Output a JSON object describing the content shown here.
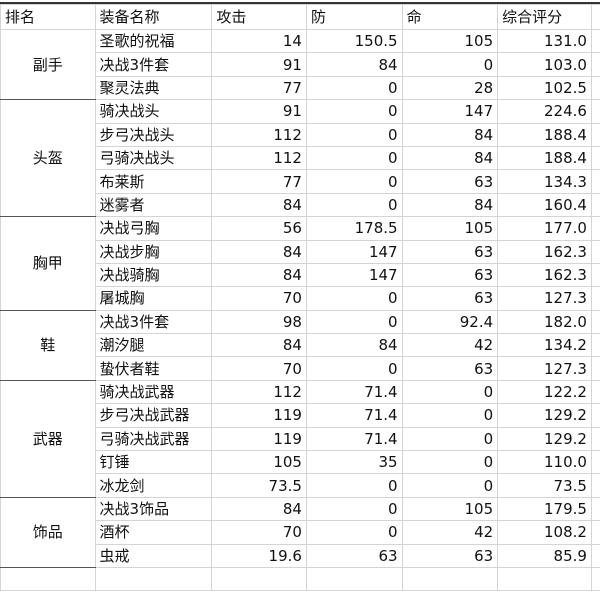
{
  "headers": [
    "排名",
    "装备名称",
    "攻击",
    "防",
    "命",
    "综合评分"
  ],
  "groups": [
    {
      "name": "副手",
      "items": [
        [
          "圣歌的祝福",
          "14",
          "150.5",
          "105",
          "131.0"
        ],
        [
          "决战3件套",
          "91",
          "84",
          "0",
          "103.0"
        ],
        [
          "聚灵法典",
          "77",
          "0",
          "28",
          "102.5"
        ]
      ]
    },
    {
      "name": "头盔",
      "items": [
        [
          "骑决战头",
          "91",
          "0",
          "147",
          "224.6"
        ],
        [
          "步弓决战头",
          "112",
          "0",
          "84",
          "188.4"
        ],
        [
          "弓骑决战头",
          "112",
          "0",
          "84",
          "188.4"
        ],
        [
          "布莱斯",
          "77",
          "0",
          "63",
          "134.3"
        ],
        [
          "迷雾者",
          "84",
          "0",
          "84",
          "160.4"
        ]
      ]
    },
    {
      "name": "胸甲",
      "items": [
        [
          "决战弓胸",
          "56",
          "178.5",
          "105",
          "177.0"
        ],
        [
          "决战步胸",
          "84",
          "147",
          "63",
          "162.3"
        ],
        [
          "决战骑胸",
          "84",
          "147",
          "63",
          "162.3"
        ],
        [
          "屠城胸",
          "70",
          "0",
          "63",
          "127.3"
        ]
      ]
    },
    {
      "name": "鞋",
      "items": [
        [
          "决战3件套",
          "98",
          "0",
          "92.4",
          "182.0"
        ],
        [
          "潮汐腿",
          "84",
          "84",
          "42",
          "134.2"
        ],
        [
          "蛰伏者鞋",
          "70",
          "0",
          "63",
          "127.3"
        ]
      ]
    },
    {
      "name": "武器",
      "items": [
        [
          "骑决战武器",
          "112",
          "71.4",
          "0",
          "122.2"
        ],
        [
          "步弓决战武器",
          "119",
          "71.4",
          "0",
          "129.2"
        ],
        [
          "弓骑决战武器",
          "119",
          "71.4",
          "0",
          "129.2"
        ],
        [
          "钉锤",
          "105",
          "35",
          "0",
          "110.0"
        ],
        [
          "冰龙剑",
          "73.5",
          "0",
          "0",
          "73.5"
        ]
      ]
    },
    {
      "name": "饰品",
      "items": [
        [
          "决战3饰品",
          "84",
          "0",
          "105",
          "179.5"
        ],
        [
          "酒杯",
          "70",
          "0",
          "42",
          "108.2"
        ],
        [
          "虫戒",
          "19.6",
          "63",
          "63",
          "85.9"
        ]
      ]
    }
  ]
}
